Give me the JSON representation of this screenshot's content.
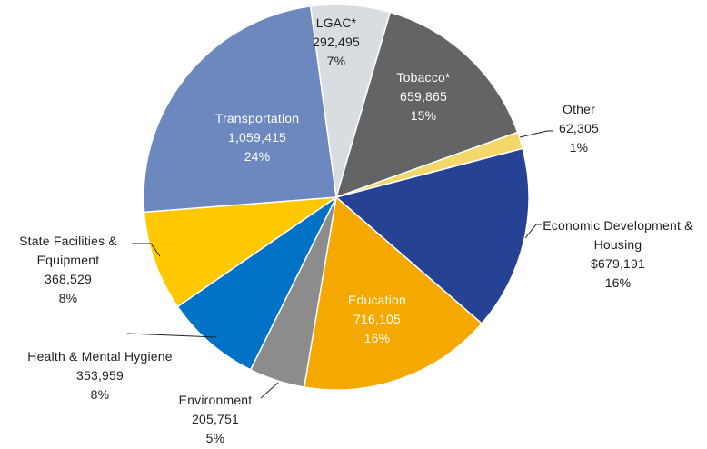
{
  "chart_data": {
    "type": "pie",
    "categories": [
      "LGAC*",
      "Tobacco*",
      "Other",
      "Economic Development & Housing",
      "Education",
      "Environment",
      "Health & Mental Hygiene",
      "State Facilities & Equipment",
      "Transportation"
    ],
    "values": [
      292495,
      659865,
      62305,
      679191,
      716105,
      205751,
      353959,
      368529,
      1059415
    ],
    "value_labels": [
      "292,495",
      "659,865",
      "62,305",
      "$679,191",
      "716,105",
      "205,751",
      "353,959",
      "368,529",
      "1,059,415"
    ],
    "percent_labels": [
      "7%",
      "15%",
      "1%",
      "16%",
      "16%",
      "5%",
      "8%",
      "8%",
      "24%"
    ],
    "colors": [
      "#d9dde2",
      "#636466",
      "#f4d76a",
      "#264294",
      "#f5a800",
      "#8c8c8c",
      "#0072c6",
      "#ffc800",
      "#6d88bf"
    ]
  }
}
